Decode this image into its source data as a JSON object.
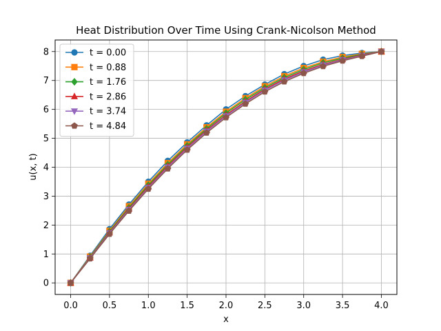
{
  "chart_data": {
    "type": "line",
    "title": "Heat Distribution Over Time Using Crank-Nicolson Method",
    "xlabel": "x",
    "ylabel": "u(x, t)",
    "xlim": [
      -0.2,
      4.2
    ],
    "ylim": [
      -0.4,
      8.4
    ],
    "xticks": [
      0.0,
      0.5,
      1.0,
      1.5,
      2.0,
      2.5,
      3.0,
      3.5,
      4.0
    ],
    "xtick_labels": [
      "0.0",
      "0.5",
      "1.0",
      "1.5",
      "2.0",
      "2.5",
      "3.0",
      "3.5",
      "4.0"
    ],
    "yticks": [
      0,
      1,
      2,
      3,
      4,
      5,
      6,
      7,
      8
    ],
    "ytick_labels": [
      "0",
      "1",
      "2",
      "3",
      "4",
      "5",
      "6",
      "7",
      "8"
    ],
    "grid": true,
    "legend_position": "upper-left",
    "x": [
      0.0,
      0.25,
      0.5,
      0.75,
      1.0,
      1.25,
      1.5,
      1.75,
      2.0,
      2.25,
      2.5,
      2.75,
      3.0,
      3.25,
      3.5,
      3.75,
      4.0
    ],
    "series": [
      {
        "name": "t = 0.00",
        "color": "#1f77b4",
        "marker": "circle",
        "values": [
          0.0,
          0.94,
          1.86,
          2.71,
          3.5,
          4.22,
          4.86,
          5.45,
          6.0,
          6.46,
          6.86,
          7.22,
          7.5,
          7.72,
          7.86,
          7.95,
          8.0
        ]
      },
      {
        "name": "t = 0.88",
        "color": "#ff7f0e",
        "marker": "square",
        "values": [
          0.0,
          0.91,
          1.8,
          2.65,
          3.43,
          4.14,
          4.79,
          5.38,
          5.92,
          6.39,
          6.8,
          7.15,
          7.43,
          7.65,
          7.81,
          7.92,
          8.0
        ]
      },
      {
        "name": "t = 1.76",
        "color": "#2ca02c",
        "marker": "diamond",
        "values": [
          0.0,
          0.89,
          1.77,
          2.6,
          3.38,
          4.09,
          4.74,
          5.33,
          5.87,
          6.34,
          6.75,
          7.1,
          7.38,
          7.61,
          7.77,
          7.9,
          8.0
        ]
      },
      {
        "name": "t = 2.86",
        "color": "#d62728",
        "marker": "triangle-up",
        "values": [
          0.0,
          0.87,
          1.74,
          2.56,
          3.33,
          4.04,
          4.69,
          5.28,
          5.81,
          6.28,
          6.7,
          7.05,
          7.33,
          7.56,
          7.73,
          7.88,
          8.0
        ]
      },
      {
        "name": "t = 3.74",
        "color": "#9467bd",
        "marker": "triangle-down",
        "values": [
          0.0,
          0.86,
          1.72,
          2.53,
          3.29,
          4.0,
          4.65,
          5.24,
          5.77,
          6.24,
          6.66,
          7.01,
          7.29,
          7.53,
          7.71,
          7.86,
          8.0
        ]
      },
      {
        "name": "t = 4.84",
        "color": "#8c564b",
        "marker": "pentagon",
        "values": [
          0.0,
          0.84,
          1.69,
          2.49,
          3.25,
          3.95,
          4.6,
          5.19,
          5.72,
          6.19,
          6.61,
          6.96,
          7.25,
          7.49,
          7.68,
          7.84,
          8.0
        ]
      }
    ]
  }
}
